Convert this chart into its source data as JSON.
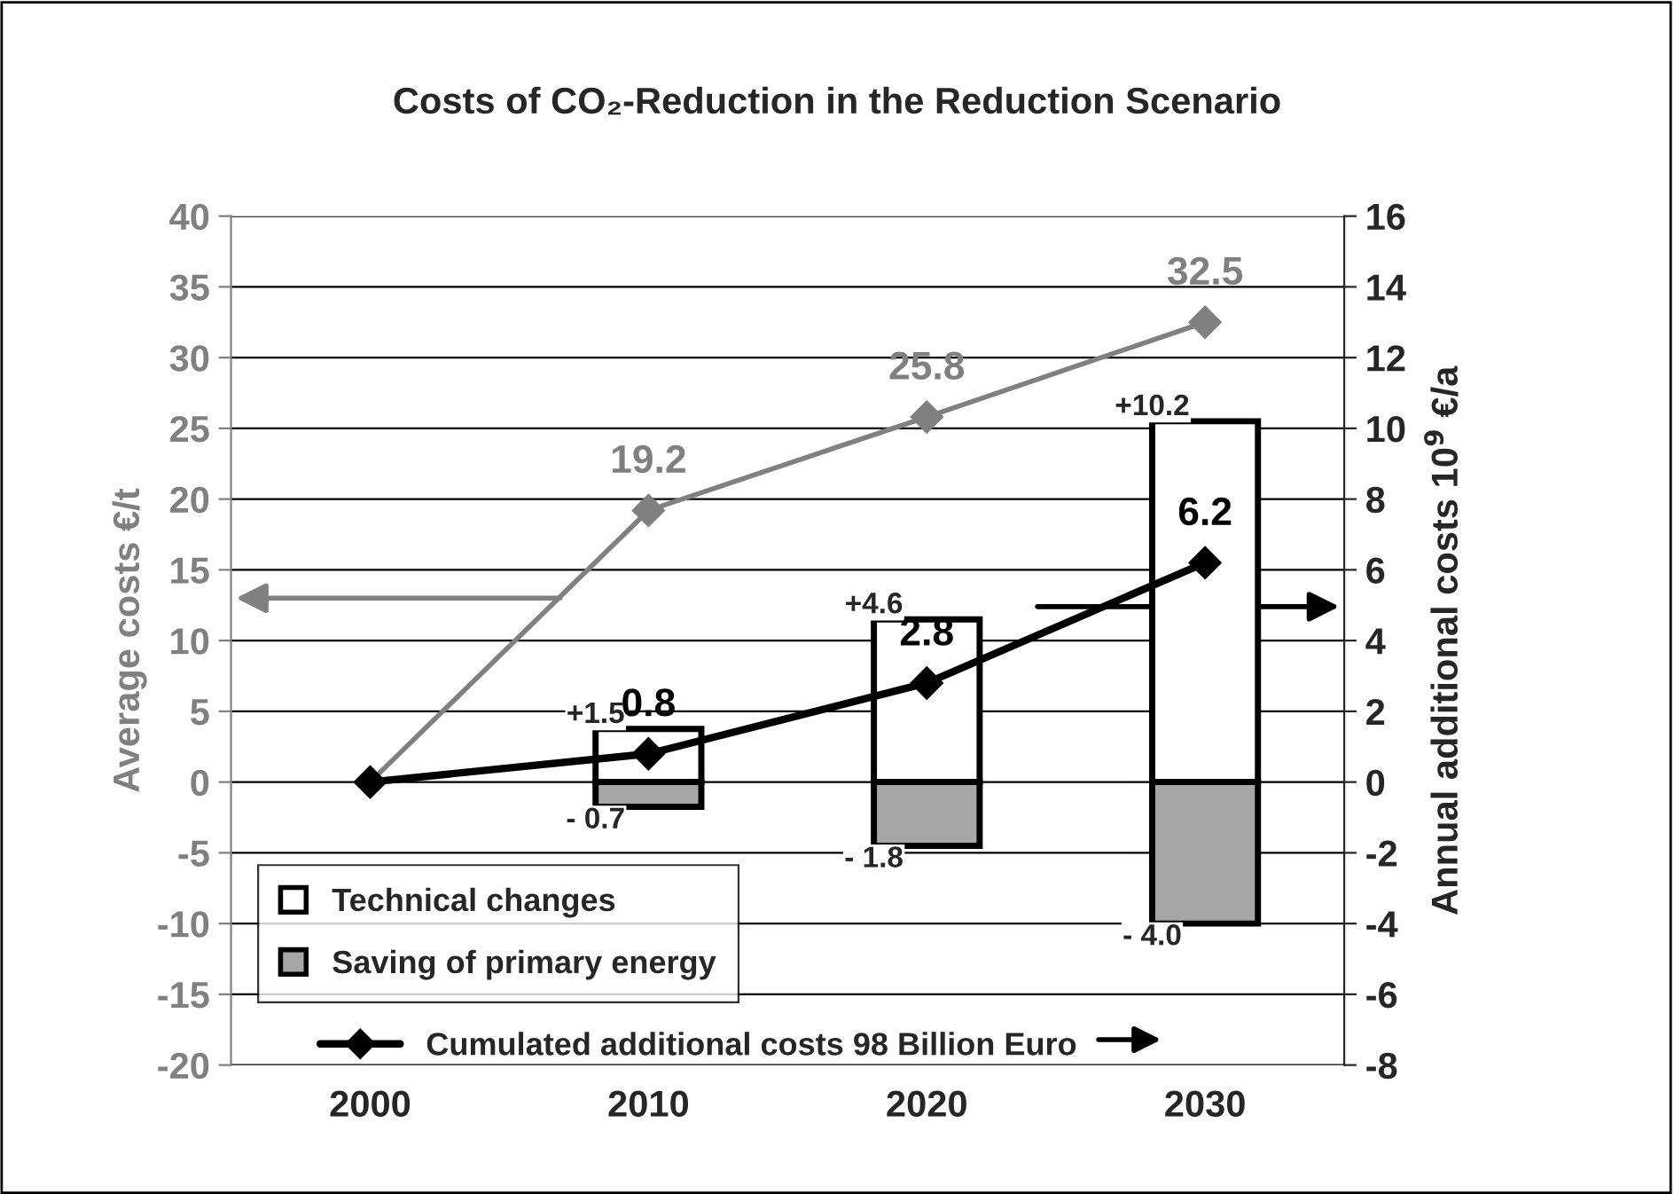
{
  "chart_data": {
    "type": "bar",
    "title": "Costs of CO₂-Reduction in the Reduction Scenario",
    "categories": [
      "2000",
      "2010",
      "2020",
      "2030"
    ],
    "ylabel": "Average costs €/t",
    "y2label": "Annual additional costs 10$^{9}$ €/a",
    "ylim": [
      -20,
      40
    ],
    "yticks": [
      -20,
      -15,
      -10,
      -5,
      0,
      5,
      10,
      15,
      20,
      25,
      30,
      35,
      40
    ],
    "y2lim": [
      -8,
      16
    ],
    "y2ticks": [
      -8,
      -6,
      -4,
      -2,
      0,
      2,
      4,
      6,
      8,
      10,
      12,
      14,
      16
    ],
    "stacked": true,
    "grid": "y",
    "legend": "bottom left",
    "marker": "diamond",
    "series": [
      {
        "name": "Technical changes",
        "axis": "y2",
        "color": "#ffffff",
        "values": [
          null,
          1.5,
          4.6,
          10.2
        ],
        "value_labels": [
          null,
          "+1.5",
          "+4.6",
          "+10.2"
        ]
      },
      {
        "name": "Saving of primary energy",
        "axis": "y2",
        "color": "#a6a6a6",
        "values": [
          null,
          -0.7,
          -1.8,
          -4.0
        ],
        "value_labels": [
          null,
          "- 0.7",
          "- 1.8",
          "- 4.0"
        ]
      },
      {
        "type": "line",
        "axis": "y",
        "color": "#808080",
        "values": [
          0,
          19.2,
          25.8,
          32.5
        ],
        "value_labels": [
          null,
          "19.2",
          "25.8",
          "32.5"
        ]
      },
      {
        "name": "Cumulated additional costs 98 Billion Euro",
        "type": "line",
        "axis": "y2",
        "color": "#000000",
        "values": [
          0,
          0.8,
          2.8,
          6.2
        ],
        "value_labels": [
          null,
          "0.8",
          "2.8",
          "6.2"
        ]
      }
    ]
  }
}
